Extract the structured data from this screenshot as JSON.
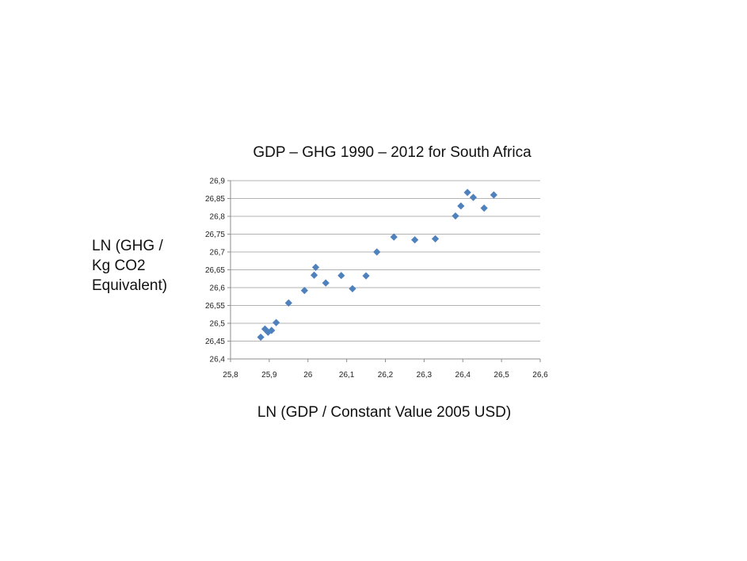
{
  "chart_data": {
    "type": "scatter",
    "title": "GDP – GHG 1990 – 2012 for South Africa",
    "xlabel": "LN (GDP / Constant Value 2005 USD)",
    "ylabel_lines": [
      "LN (GHG /",
      "Kg CO2",
      "Equivalent)"
    ],
    "xlim": [
      25.8,
      26.6
    ],
    "ylim": [
      26.4,
      26.9
    ],
    "x_ticks": [
      "25,8",
      "25,9",
      "26",
      "26,1",
      "26,2",
      "26,3",
      "26,4",
      "26,5",
      "26,6"
    ],
    "y_ticks": [
      "26,4",
      "26,45",
      "26,5",
      "26,55",
      "26,6",
      "26,65",
      "26,7",
      "26,75",
      "26,8",
      "26,85",
      "26,9"
    ],
    "grid": "horizontal",
    "legend": "none",
    "marker": "diamond",
    "color": "#4f81bd",
    "points": [
      {
        "x": 25.878,
        "y": 26.461
      },
      {
        "x": 25.889,
        "y": 26.484
      },
      {
        "x": 25.897,
        "y": 26.475
      },
      {
        "x": 25.906,
        "y": 26.48
      },
      {
        "x": 25.918,
        "y": 26.502
      },
      {
        "x": 25.95,
        "y": 26.557
      },
      {
        "x": 25.991,
        "y": 26.592
      },
      {
        "x": 26.016,
        "y": 26.635
      },
      {
        "x": 26.02,
        "y": 26.657
      },
      {
        "x": 26.046,
        "y": 26.613
      },
      {
        "x": 26.086,
        "y": 26.634
      },
      {
        "x": 26.115,
        "y": 26.597
      },
      {
        "x": 26.15,
        "y": 26.633
      },
      {
        "x": 26.178,
        "y": 26.7
      },
      {
        "x": 26.222,
        "y": 26.742
      },
      {
        "x": 26.276,
        "y": 26.734
      },
      {
        "x": 26.329,
        "y": 26.737
      },
      {
        "x": 26.381,
        "y": 26.801
      },
      {
        "x": 26.395,
        "y": 26.829
      },
      {
        "x": 26.412,
        "y": 26.867
      },
      {
        "x": 26.427,
        "y": 26.853
      },
      {
        "x": 26.455,
        "y": 26.823
      },
      {
        "x": 26.48,
        "y": 26.86
      }
    ]
  }
}
